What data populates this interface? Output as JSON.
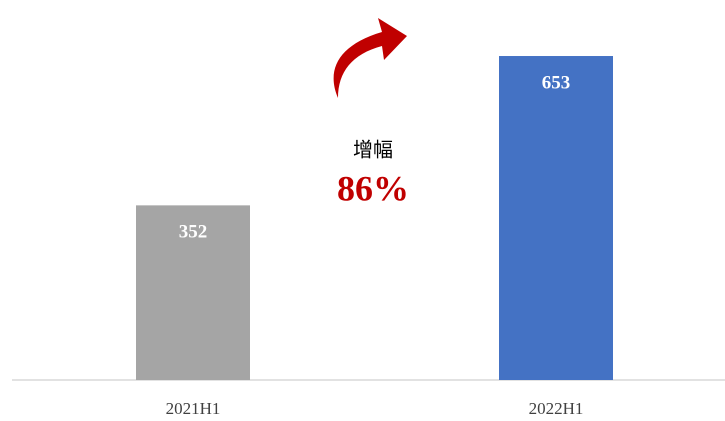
{
  "chart_data": {
    "type": "bar",
    "categories": [
      "2021H1",
      "2022H1"
    ],
    "values": [
      352,
      653
    ],
    "colors": [
      "#a5a5a5",
      "#4472c4"
    ],
    "ylim": [
      0,
      700
    ],
    "annotation": {
      "label": "增幅",
      "text": "86%",
      "color": "#c00000"
    }
  }
}
